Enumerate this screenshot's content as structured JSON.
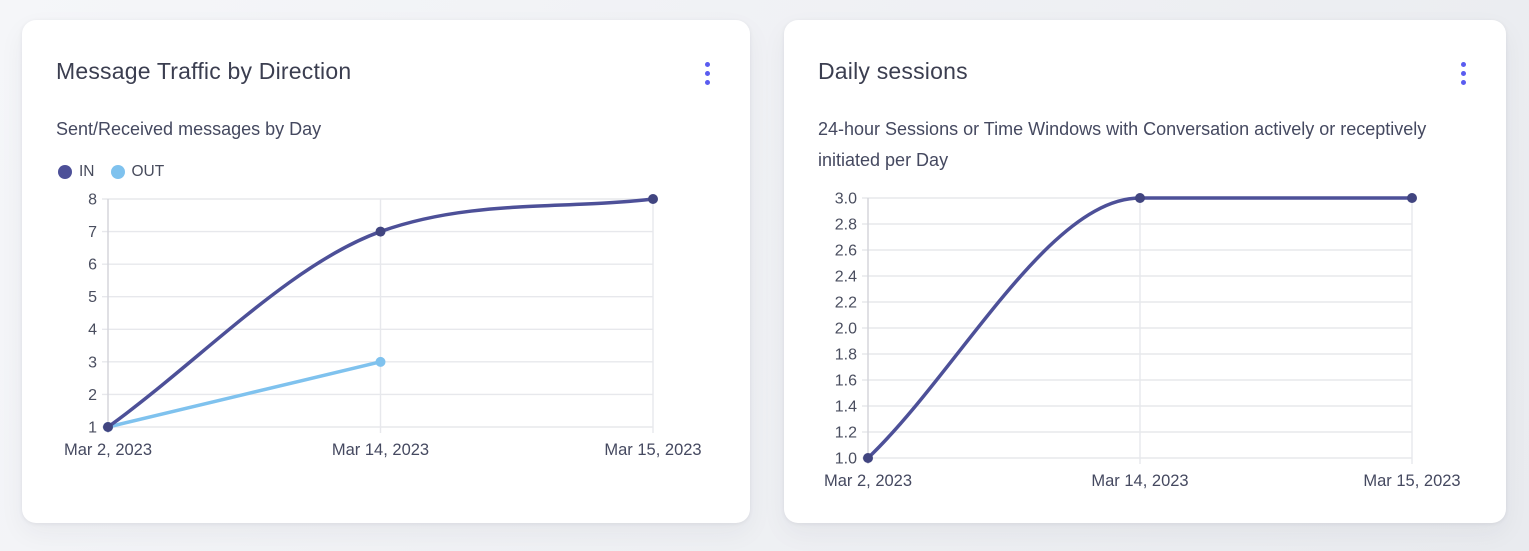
{
  "page": {
    "background_start": "#f5f6f9",
    "background_end": "#e9ebef",
    "card_background": "#ffffff",
    "accent_color": "#5a5cf0",
    "grid_color": "#e7e8ec",
    "axis_color": "#d5d6dc"
  },
  "chart_data": [
    {
      "type": "line",
      "title": "Message Traffic by Direction",
      "subtitle": "Sent/Received messages by Day",
      "menu_icon": "kebab-menu-icon",
      "categories": [
        "Mar 2, 2023",
        "Mar 14, 2023",
        "Mar 15, 2023"
      ],
      "series": [
        {
          "name": "IN",
          "color": "#4d5098",
          "point_color": "#414580",
          "values": [
            1,
            7,
            8
          ]
        },
        {
          "name": "OUT",
          "color": "#7fc2ee",
          "point_color": "#7fc2ee",
          "values": [
            1,
            3,
            null
          ]
        }
      ],
      "xlabel": "",
      "ylabel": "",
      "ylim": [
        1,
        8
      ],
      "ytick_values": [
        1,
        2,
        3,
        4,
        5,
        6,
        7,
        8
      ],
      "ytick_labels": [
        "1",
        "2",
        "3",
        "4",
        "5",
        "6",
        "7",
        "8"
      ],
      "legend": {
        "visible": true,
        "position": "top-left"
      },
      "grid": true,
      "curve": "monotone"
    },
    {
      "type": "line",
      "title": "Daily sessions",
      "subtitle": "24-hour Sessions or Time Windows with Conversation actively or receptively initiated per Day",
      "menu_icon": "kebab-menu-icon",
      "categories": [
        "Mar 2, 2023",
        "Mar 14, 2023",
        "Mar 15, 2023"
      ],
      "series": [
        {
          "name": "Daily sessions",
          "color": "#4d5098",
          "point_color": "#414580",
          "values": [
            1,
            3,
            3
          ]
        }
      ],
      "xlabel": "",
      "ylabel": "",
      "ylim": [
        1,
        3
      ],
      "ytick_values": [
        1,
        1.2,
        1.4,
        1.6,
        1.8,
        2,
        2.2,
        2.4,
        2.6,
        2.8,
        3
      ],
      "ytick_labels": [
        "1.0",
        "1.2",
        "1.4",
        "1.6",
        "1.8",
        "2.0",
        "2.2",
        "2.4",
        "2.6",
        "2.8",
        "3.0"
      ],
      "legend": {
        "visible": false,
        "position": "none"
      },
      "grid": true,
      "curve": "monotone"
    }
  ]
}
